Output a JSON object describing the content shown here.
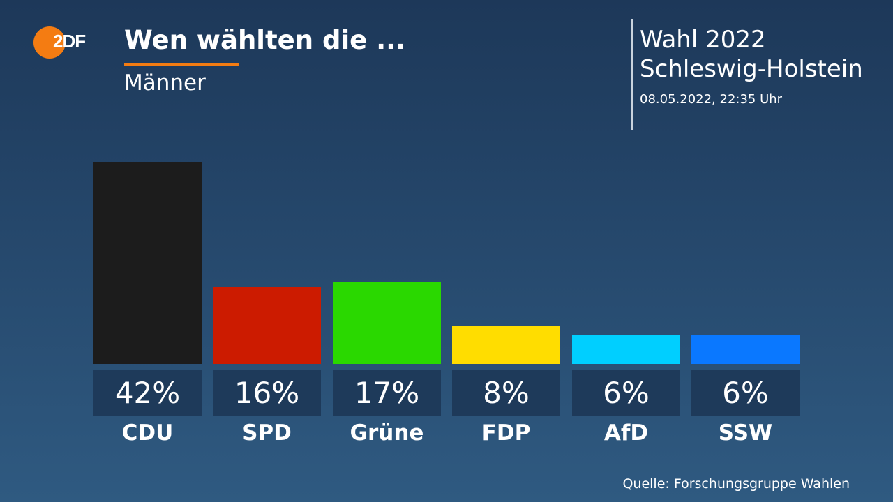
{
  "logo": {
    "text": "2DF",
    "brand_color": "#f47c12"
  },
  "header": {
    "title": "Wen wählten die ...",
    "subtitle": "Männer"
  },
  "election": {
    "line1": "Wahl 2022",
    "line2": "Schleswig-Holstein",
    "date": "08.05.2022, 22:35 Uhr"
  },
  "chart_data": {
    "type": "bar",
    "title": "Wen wählten die ...",
    "subtitle": "Männer",
    "categories": [
      "CDU",
      "SPD",
      "Grüne",
      "FDP",
      "AfD",
      "SSW"
    ],
    "values": [
      42,
      16,
      17,
      8,
      6,
      6
    ],
    "value_labels": [
      "42%",
      "16%",
      "17%",
      "8%",
      "6%",
      "6%"
    ],
    "colors": [
      "#1c1c1c",
      "#cc1b00",
      "#2ad800",
      "#ffdd00",
      "#00cfff",
      "#0a78ff"
    ],
    "unit": "%",
    "grid": false
  },
  "footer": {
    "source": "Quelle: Forschungsgruppe Wahlen"
  }
}
